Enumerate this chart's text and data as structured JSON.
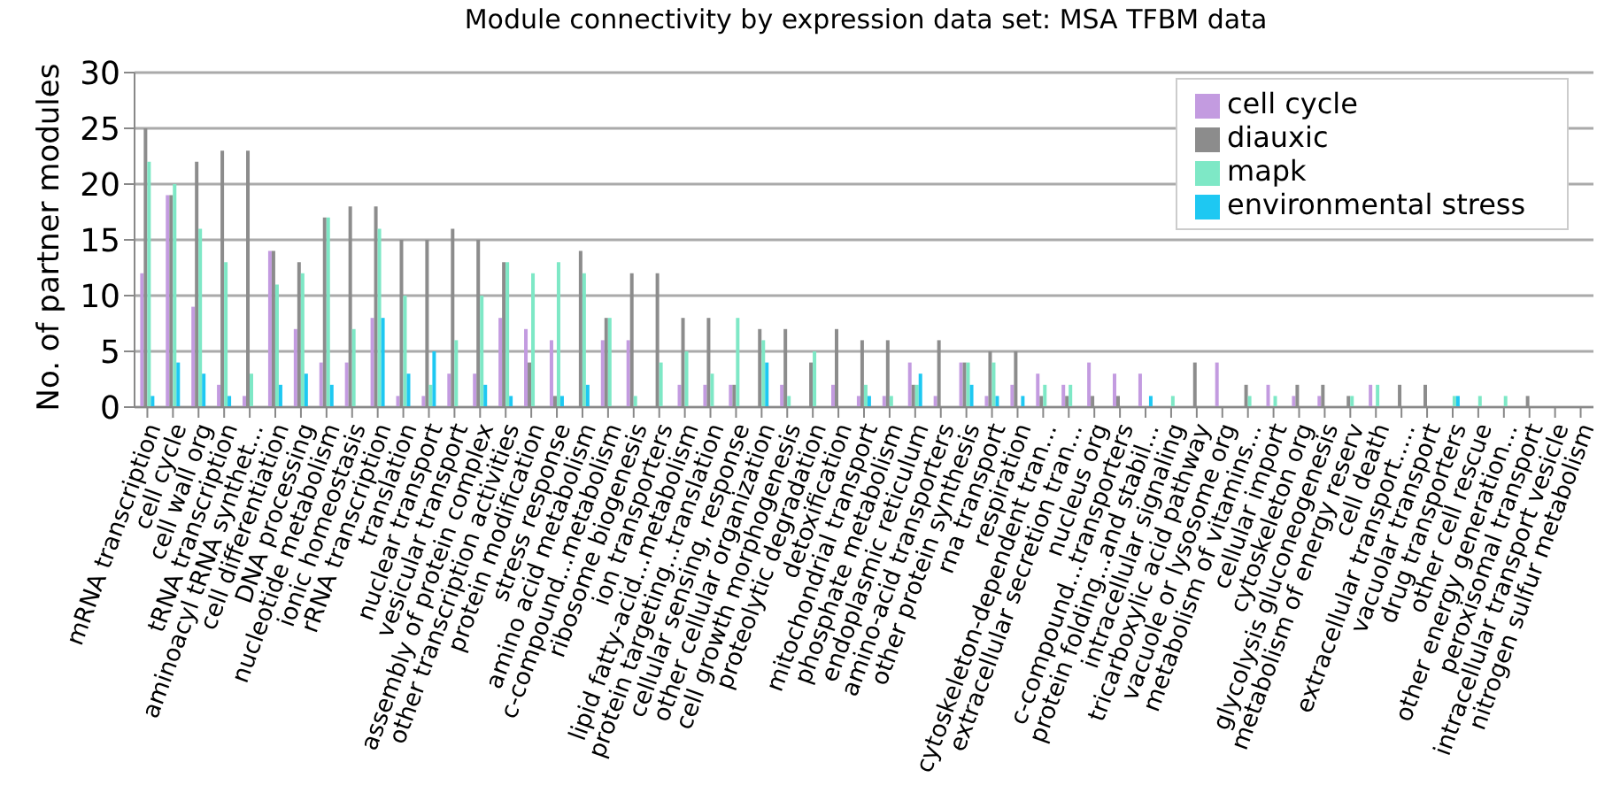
{
  "chart_data": {
    "type": "bar",
    "title": "Module connectivity by expression data set: MSA TFBM data",
    "ylabel": "No. of partner modules",
    "categories": [
      "mRNA transcription",
      "cell cycle",
      "cell wall org",
      "tRNA transcription",
      "aminoacyl tRNA synthet...",
      "cell differentiation",
      "DNA processing",
      "nucleotide metabolism",
      "ionic homeostasis",
      "rRNA transcription",
      "translation",
      "nuclear transport",
      "vesicular transport",
      "assembly of protein complex",
      "other transcription activities",
      "protein modification",
      "stress response",
      "amino acid metabolism",
      "c-compound...metabolism",
      "ribosome biogenesis",
      "ion transporters",
      "lipid fatty-acid...metabolism",
      "protein targeting...translation",
      "cellular sensing, response",
      "other cellular organization",
      "cell growth morphogenesis",
      "proteolytic degradation",
      "detoxification",
      "mitochondrial transport",
      "phosphate metabolism",
      "endoplasmic reticulum",
      "amino-acid transporters",
      "other protein synthesis",
      "rna transport",
      "respiration",
      "cytoskeleton-dependent tran...",
      "extracellular secretion tran...",
      "nucleus org",
      "c-compound...transporters",
      "protein folding...and stabil...",
      "intracellular signaling",
      "tricarboxylic acid pathway",
      "vacuole or lysosome org",
      "metabolism of vitamins...",
      "cellular import",
      "cytoskeleton org",
      "glycolysis gluconeogenesis",
      "metabolism of energy reserv",
      "cell death",
      "extracellular transport.....",
      "vacuolar transport",
      "drug transporters",
      "other cell rescue",
      "other energy generation...",
      "peroxisomal transport",
      "intracellular transport vesicle",
      "nitrogen sulfur metabolism"
    ],
    "series": [
      {
        "name": "cell cycle",
        "color": "#c39be0",
        "values": [
          12,
          19,
          9,
          2,
          1,
          14,
          7,
          4,
          4,
          8,
          1,
          1,
          3,
          3,
          8,
          7,
          6,
          0,
          6,
          6,
          0,
          2,
          2,
          2,
          0,
          2,
          0,
          2,
          1,
          1,
          4,
          1,
          4,
          1,
          2,
          3,
          2,
          4,
          3,
          3,
          0,
          0,
          4,
          0,
          2,
          1,
          1,
          0,
          2,
          0,
          0,
          0,
          0,
          0,
          0,
          0,
          0
        ]
      },
      {
        "name": "diauxic",
        "color": "#8c8c8c",
        "values": [
          25,
          19,
          22,
          23,
          23,
          14,
          13,
          17,
          18,
          18,
          15,
          15,
          16,
          15,
          13,
          4,
          1,
          14,
          8,
          12,
          12,
          8,
          8,
          2,
          7,
          7,
          4,
          7,
          6,
          6,
          2,
          6,
          4,
          5,
          5,
          1,
          1,
          1,
          1,
          0,
          0,
          4,
          0,
          2,
          0,
          2,
          2,
          1,
          0,
          2,
          2,
          0,
          0,
          0,
          1,
          0,
          0
        ]
      },
      {
        "name": "mapk",
        "color": "#7ee8c6",
        "values": [
          22,
          20,
          16,
          13,
          3,
          11,
          12,
          17,
          7,
          16,
          10,
          2,
          6,
          10,
          13,
          12,
          13,
          12,
          8,
          1,
          4,
          5,
          3,
          8,
          6,
          1,
          5,
          0,
          2,
          1,
          2,
          0,
          4,
          4,
          0,
          2,
          2,
          0,
          0,
          0,
          1,
          0,
          0,
          1,
          1,
          0,
          0,
          1,
          2,
          0,
          0,
          1,
          1,
          1,
          0,
          0,
          0
        ]
      },
      {
        "name": "environmental stress",
        "color": "#1ec8f2",
        "values": [
          1,
          4,
          3,
          1,
          0,
          2,
          3,
          2,
          0,
          8,
          3,
          5,
          0,
          2,
          1,
          0,
          1,
          2,
          0,
          0,
          0,
          0,
          0,
          0,
          4,
          0,
          0,
          0,
          1,
          0,
          3,
          0,
          2,
          1,
          1,
          0,
          0,
          0,
          0,
          1,
          0,
          0,
          0,
          0,
          0,
          0,
          0,
          0,
          0,
          0,
          0,
          1,
          0,
          0,
          0,
          0,
          0
        ]
      }
    ],
    "ylim": [
      0,
      30
    ],
    "yticks": [
      0,
      5,
      10,
      15,
      20,
      25,
      30
    ],
    "grid": "y",
    "legend": "top right"
  }
}
